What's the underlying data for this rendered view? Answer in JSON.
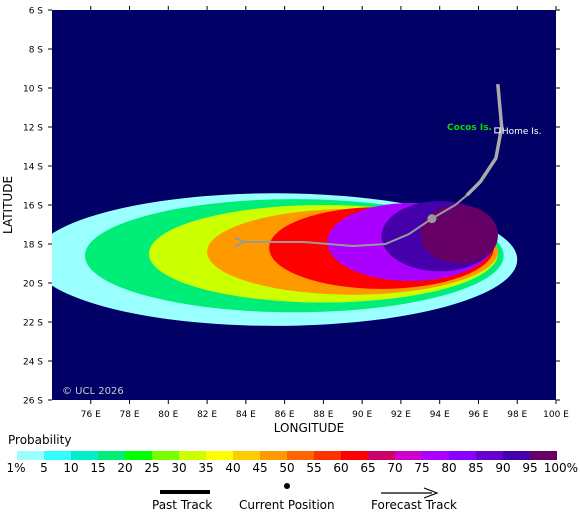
{
  "map": {
    "lat_labels": [
      "6 S",
      "8 S",
      "10 S",
      "12 S",
      "14 S",
      "16 S",
      "18 S",
      "20 S",
      "22 S",
      "24 S",
      "26 S"
    ],
    "lon_labels": [
      "76 E",
      "78 E",
      "80 E",
      "82 E",
      "84 E",
      "86 E",
      "88 E",
      "90 E",
      "92 E",
      "94 E",
      "96 E",
      "98 E",
      "100 E"
    ],
    "lat_range": [
      -26,
      -6
    ],
    "lon_range": [
      74,
      100
    ],
    "xlabel": "LONGITUDE",
    "ylabel": "LATITUDE",
    "copyright": "© UCL 2026",
    "places": [
      {
        "name": "Cocos Is.",
        "lon": 96.8,
        "lat": -12.1,
        "color": "#00dd00"
      },
      {
        "name": "Home Is.",
        "lon": 97.0,
        "lat": -12.2,
        "color": "#ffffff"
      }
    ],
    "ocean_color": "#000066",
    "past_track": [
      [
        97.0,
        -9.8
      ],
      [
        97.2,
        -12.0
      ],
      [
        96.9,
        -13.6
      ],
      [
        96.1,
        -14.8
      ],
      [
        95.4,
        -15.5
      ]
    ],
    "current_position": {
      "lon": 93.6,
      "lat": -16.7
    },
    "forecast_track": [
      [
        95.4,
        -15.5
      ],
      [
        94.8,
        -16.0
      ],
      [
        93.6,
        -16.7
      ],
      [
        92.4,
        -17.5
      ],
      [
        91.2,
        -18.0
      ],
      [
        89.5,
        -18.1
      ],
      [
        87.0,
        -17.9
      ],
      [
        84.8,
        -17.9
      ],
      [
        83.8,
        -17.9
      ]
    ],
    "probability_field": [
      {
        "lon": 85.5,
        "lat": -18.8,
        "rx": 12.5,
        "ry": 3.4,
        "prob": 1
      },
      {
        "lon": 86.5,
        "lat": -18.6,
        "rx": 10.8,
        "ry": 2.9,
        "prob": 15
      },
      {
        "lon": 88.0,
        "lat": -18.5,
        "rx": 9.0,
        "ry": 2.5,
        "prob": 30
      },
      {
        "lon": 89.5,
        "lat": -18.4,
        "rx": 7.5,
        "ry": 2.2,
        "prob": 45
      },
      {
        "lon": 91.0,
        "lat": -18.2,
        "rx": 5.8,
        "ry": 2.1,
        "prob": 60
      },
      {
        "lon": 92.5,
        "lat": -17.9,
        "rx": 4.3,
        "ry": 2.0,
        "prob": 75
      },
      {
        "lon": 94.0,
        "lat": -17.6,
        "rx": 3.0,
        "ry": 1.8,
        "prob": 90
      },
      {
        "lon": 95.0,
        "lat": -17.5,
        "rx": 2.0,
        "ry": 1.5,
        "prob": 100
      }
    ]
  },
  "legend": {
    "title": "Probability",
    "labels": [
      "1%",
      "5",
      "10",
      "15",
      "20",
      "25",
      "30",
      "35",
      "40",
      "45",
      "50",
      "55",
      "60",
      "65",
      "70",
      "75",
      "80",
      "85",
      "90",
      "95",
      "100%"
    ],
    "colors": [
      "#99ffff",
      "#33ffff",
      "#00eecc",
      "#00ee77",
      "#00ff00",
      "#77ff00",
      "#ccff00",
      "#ffff00",
      "#ffcc00",
      "#ff9900",
      "#ff6600",
      "#ff3300",
      "#ff0000",
      "#cc0066",
      "#cc00cc",
      "#aa00ff",
      "#8800ff",
      "#6600cc",
      "#4400aa",
      "#660066"
    ]
  },
  "key": {
    "past_track_label": "Past Track",
    "current_position_label": "Current Position",
    "forecast_track_label": "Forecast Track"
  }
}
